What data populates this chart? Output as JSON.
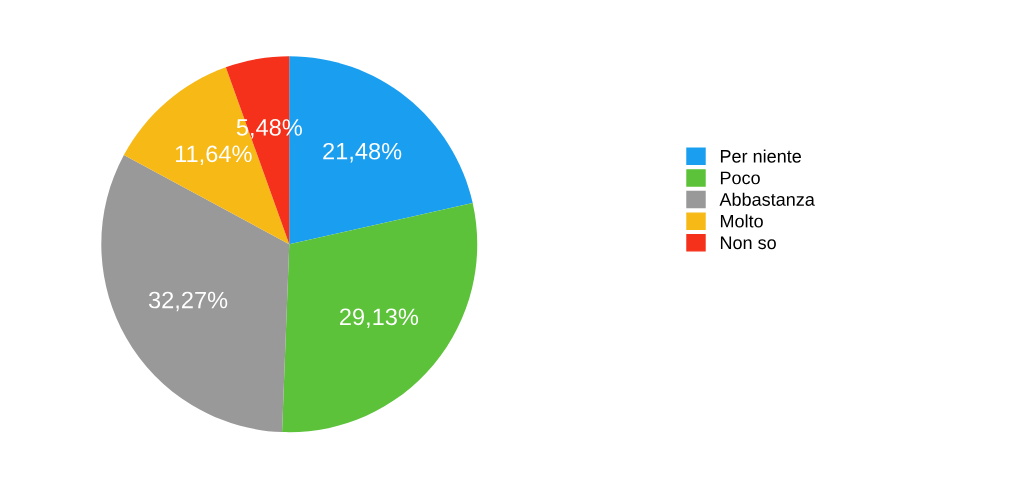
{
  "chart_data": {
    "type": "pie",
    "categories": [
      "Per niente",
      "Poco",
      "Abbastanza",
      "Molto",
      "Non so"
    ],
    "values": [
      21.48,
      29.13,
      32.27,
      11.64,
      5.48
    ],
    "value_labels": [
      "21,48%",
      "29,13%",
      "32,27%",
      "11,64%",
      "5,48%"
    ],
    "colors": [
      "#1a9ff0",
      "#5cc23a",
      "#999999",
      "#f7b916",
      "#f5311b"
    ],
    "legend": "right"
  }
}
